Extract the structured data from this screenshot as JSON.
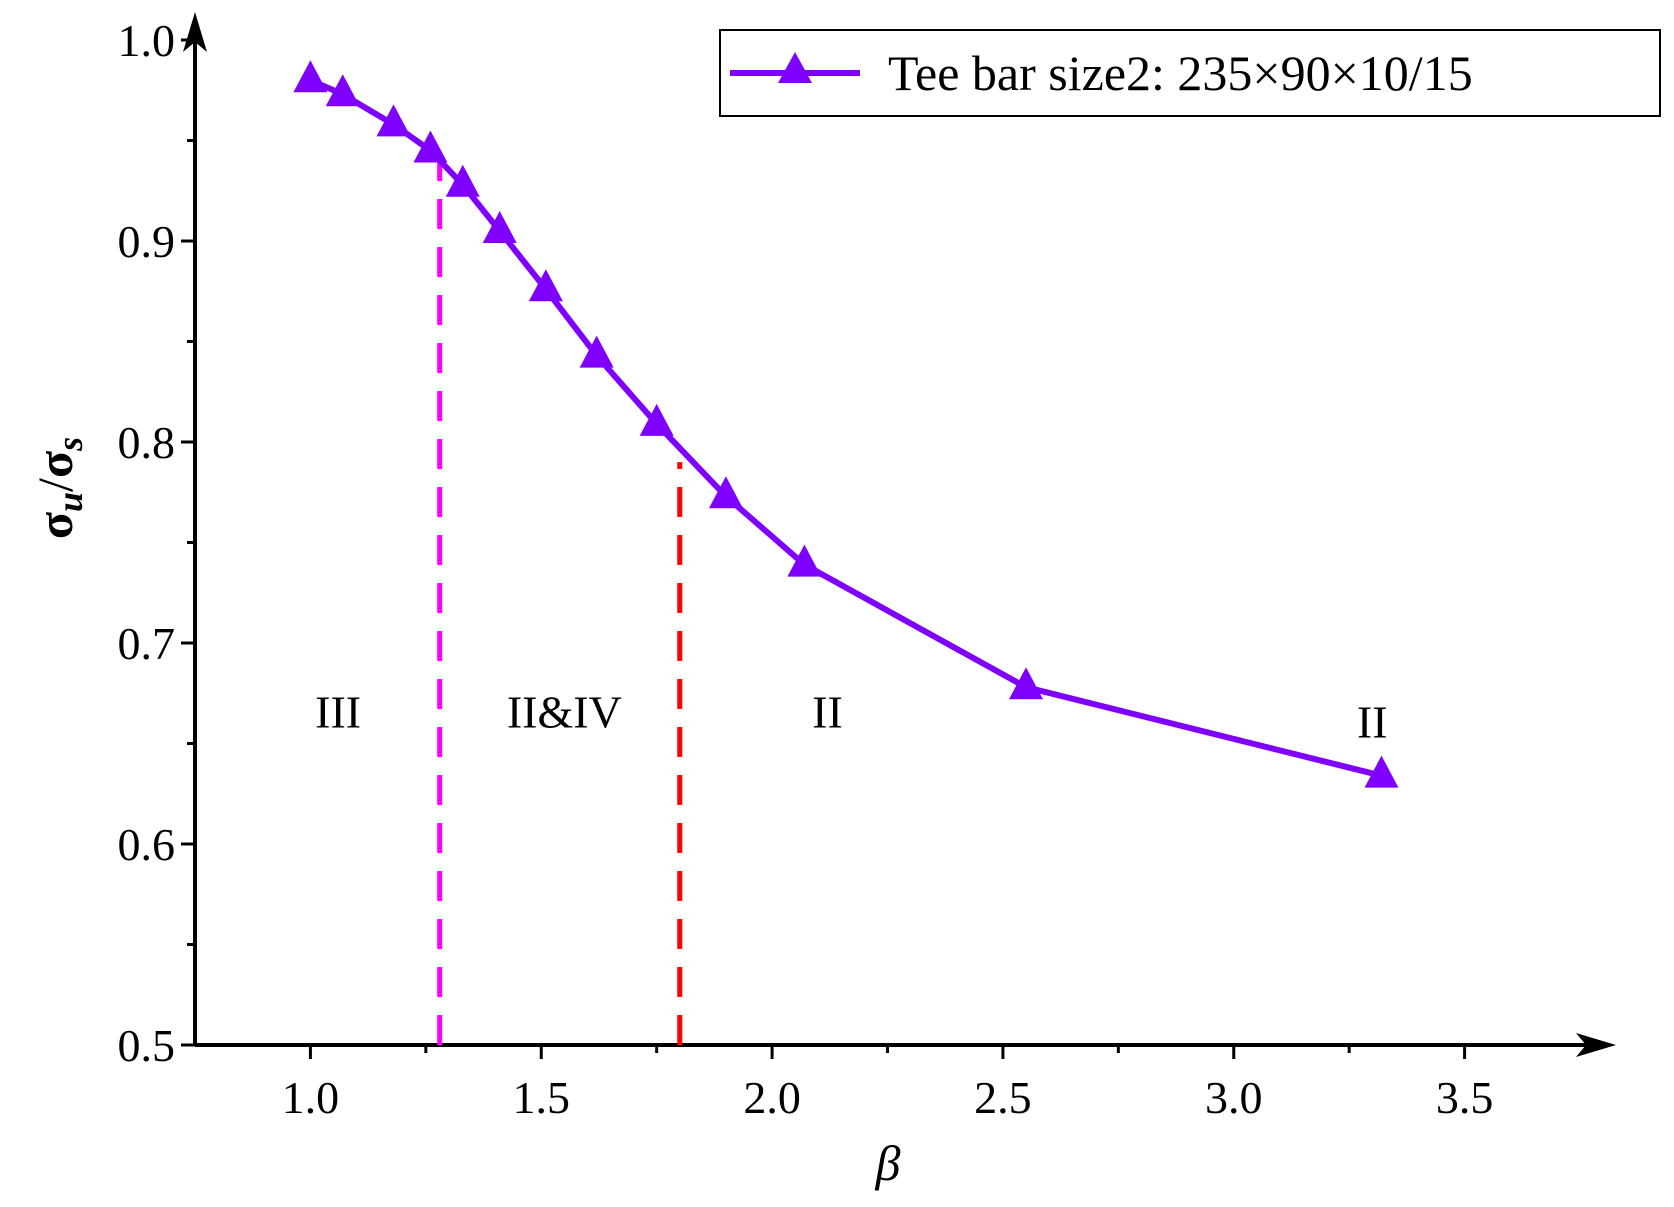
{
  "chart_data": {
    "type": "line",
    "xlabel": "β",
    "ylabel": {
      "numerator_symbol": "σ",
      "numerator_sub": "u",
      "separator": "/",
      "denominator_symbol": "σ",
      "denominator_sub": "s"
    },
    "xlim": [
      0.75,
      3.75
    ],
    "ylim": [
      0.5,
      1.0
    ],
    "x_ticks": [
      {
        "value": 1.0,
        "label": "1.0"
      },
      {
        "value": 1.5,
        "label": "1.5"
      },
      {
        "value": 2.0,
        "label": "2.0"
      },
      {
        "value": 2.5,
        "label": "2.5"
      },
      {
        "value": 3.0,
        "label": "3.0"
      },
      {
        "value": 3.5,
        "label": "3.5"
      }
    ],
    "y_ticks": [
      {
        "value": 0.5,
        "label": "0.5"
      },
      {
        "value": 0.6,
        "label": "0.6"
      },
      {
        "value": 0.7,
        "label": "0.7"
      },
      {
        "value": 0.8,
        "label": "0.8"
      },
      {
        "value": 0.9,
        "label": "0.9"
      },
      {
        "value": 1.0,
        "label": "1.0"
      }
    ],
    "grid": false,
    "legend_position": "top-right",
    "series": [
      {
        "name": "Tee bar size2: 235×90×10/15",
        "color": "#8000ff",
        "marker": "triangle",
        "points": [
          {
            "x": 1.0,
            "y": 0.98
          },
          {
            "x": 1.07,
            "y": 0.973
          },
          {
            "x": 1.18,
            "y": 0.958
          },
          {
            "x": 1.26,
            "y": 0.945
          },
          {
            "x": 1.33,
            "y": 0.928
          },
          {
            "x": 1.41,
            "y": 0.905
          },
          {
            "x": 1.51,
            "y": 0.876
          },
          {
            "x": 1.62,
            "y": 0.843
          },
          {
            "x": 1.75,
            "y": 0.809
          },
          {
            "x": 1.9,
            "y": 0.773
          },
          {
            "x": 2.07,
            "y": 0.739
          },
          {
            "x": 2.55,
            "y": 0.678
          },
          {
            "x": 3.32,
            "y": 0.634
          }
        ]
      }
    ],
    "reference_lines": [
      {
        "x": 1.28,
        "y_from": 0.5,
        "y_to": 0.94,
        "color": "#ff00ff",
        "style": "dashed"
      },
      {
        "x": 1.8,
        "y_from": 0.5,
        "y_to": 0.79,
        "color": "#ff0000",
        "style": "dashed"
      }
    ],
    "annotations": [
      {
        "text": "III",
        "x": 1.06,
        "y": 0.665
      },
      {
        "text": "II&IV",
        "x": 1.55,
        "y": 0.665
      },
      {
        "text": "II",
        "x": 2.12,
        "y": 0.665
      },
      {
        "text": "II",
        "x": 3.3,
        "y": 0.66
      }
    ]
  }
}
